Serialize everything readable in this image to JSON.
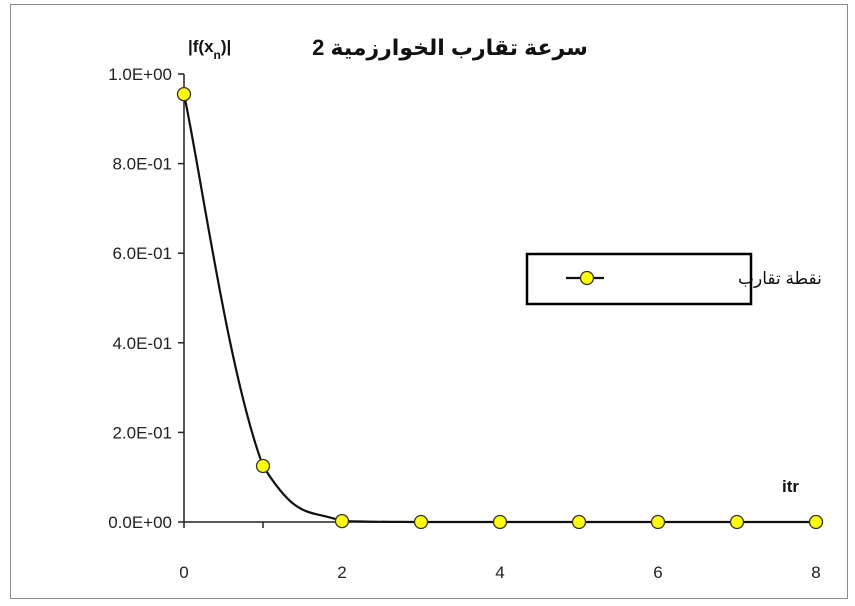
{
  "chart_data": {
    "type": "line",
    "title": "سرعة تقارب الخوارزمية 2",
    "ylabel": "|f(xn)|",
    "ylabel_base": "|f(x",
    "ylabel_sub": "n",
    "ylabel_end": ")|",
    "xlabel": "itr",
    "x": [
      0,
      1,
      2,
      3,
      4,
      5,
      6,
      7,
      8
    ],
    "series": [
      {
        "name": "نقطة تقارب",
        "values": [
          0.955,
          0.125,
          0.002,
          0.0,
          0.0,
          0.0,
          0.0,
          0.0,
          0.0
        ],
        "line_color": "#111111",
        "marker_fill": "#ffff00",
        "marker_stroke": "#333333"
      }
    ],
    "xlim": [
      0,
      8
    ],
    "ylim": [
      0,
      1.0
    ],
    "x_ticks": [
      "0",
      "2",
      "4",
      "6",
      "8"
    ],
    "y_ticks": [
      "0.0E+00",
      "2.0E-01",
      "4.0E-01",
      "6.0E-01",
      "8.0E-01",
      "1.0E+00"
    ],
    "grid": false,
    "legend_position": "right"
  }
}
